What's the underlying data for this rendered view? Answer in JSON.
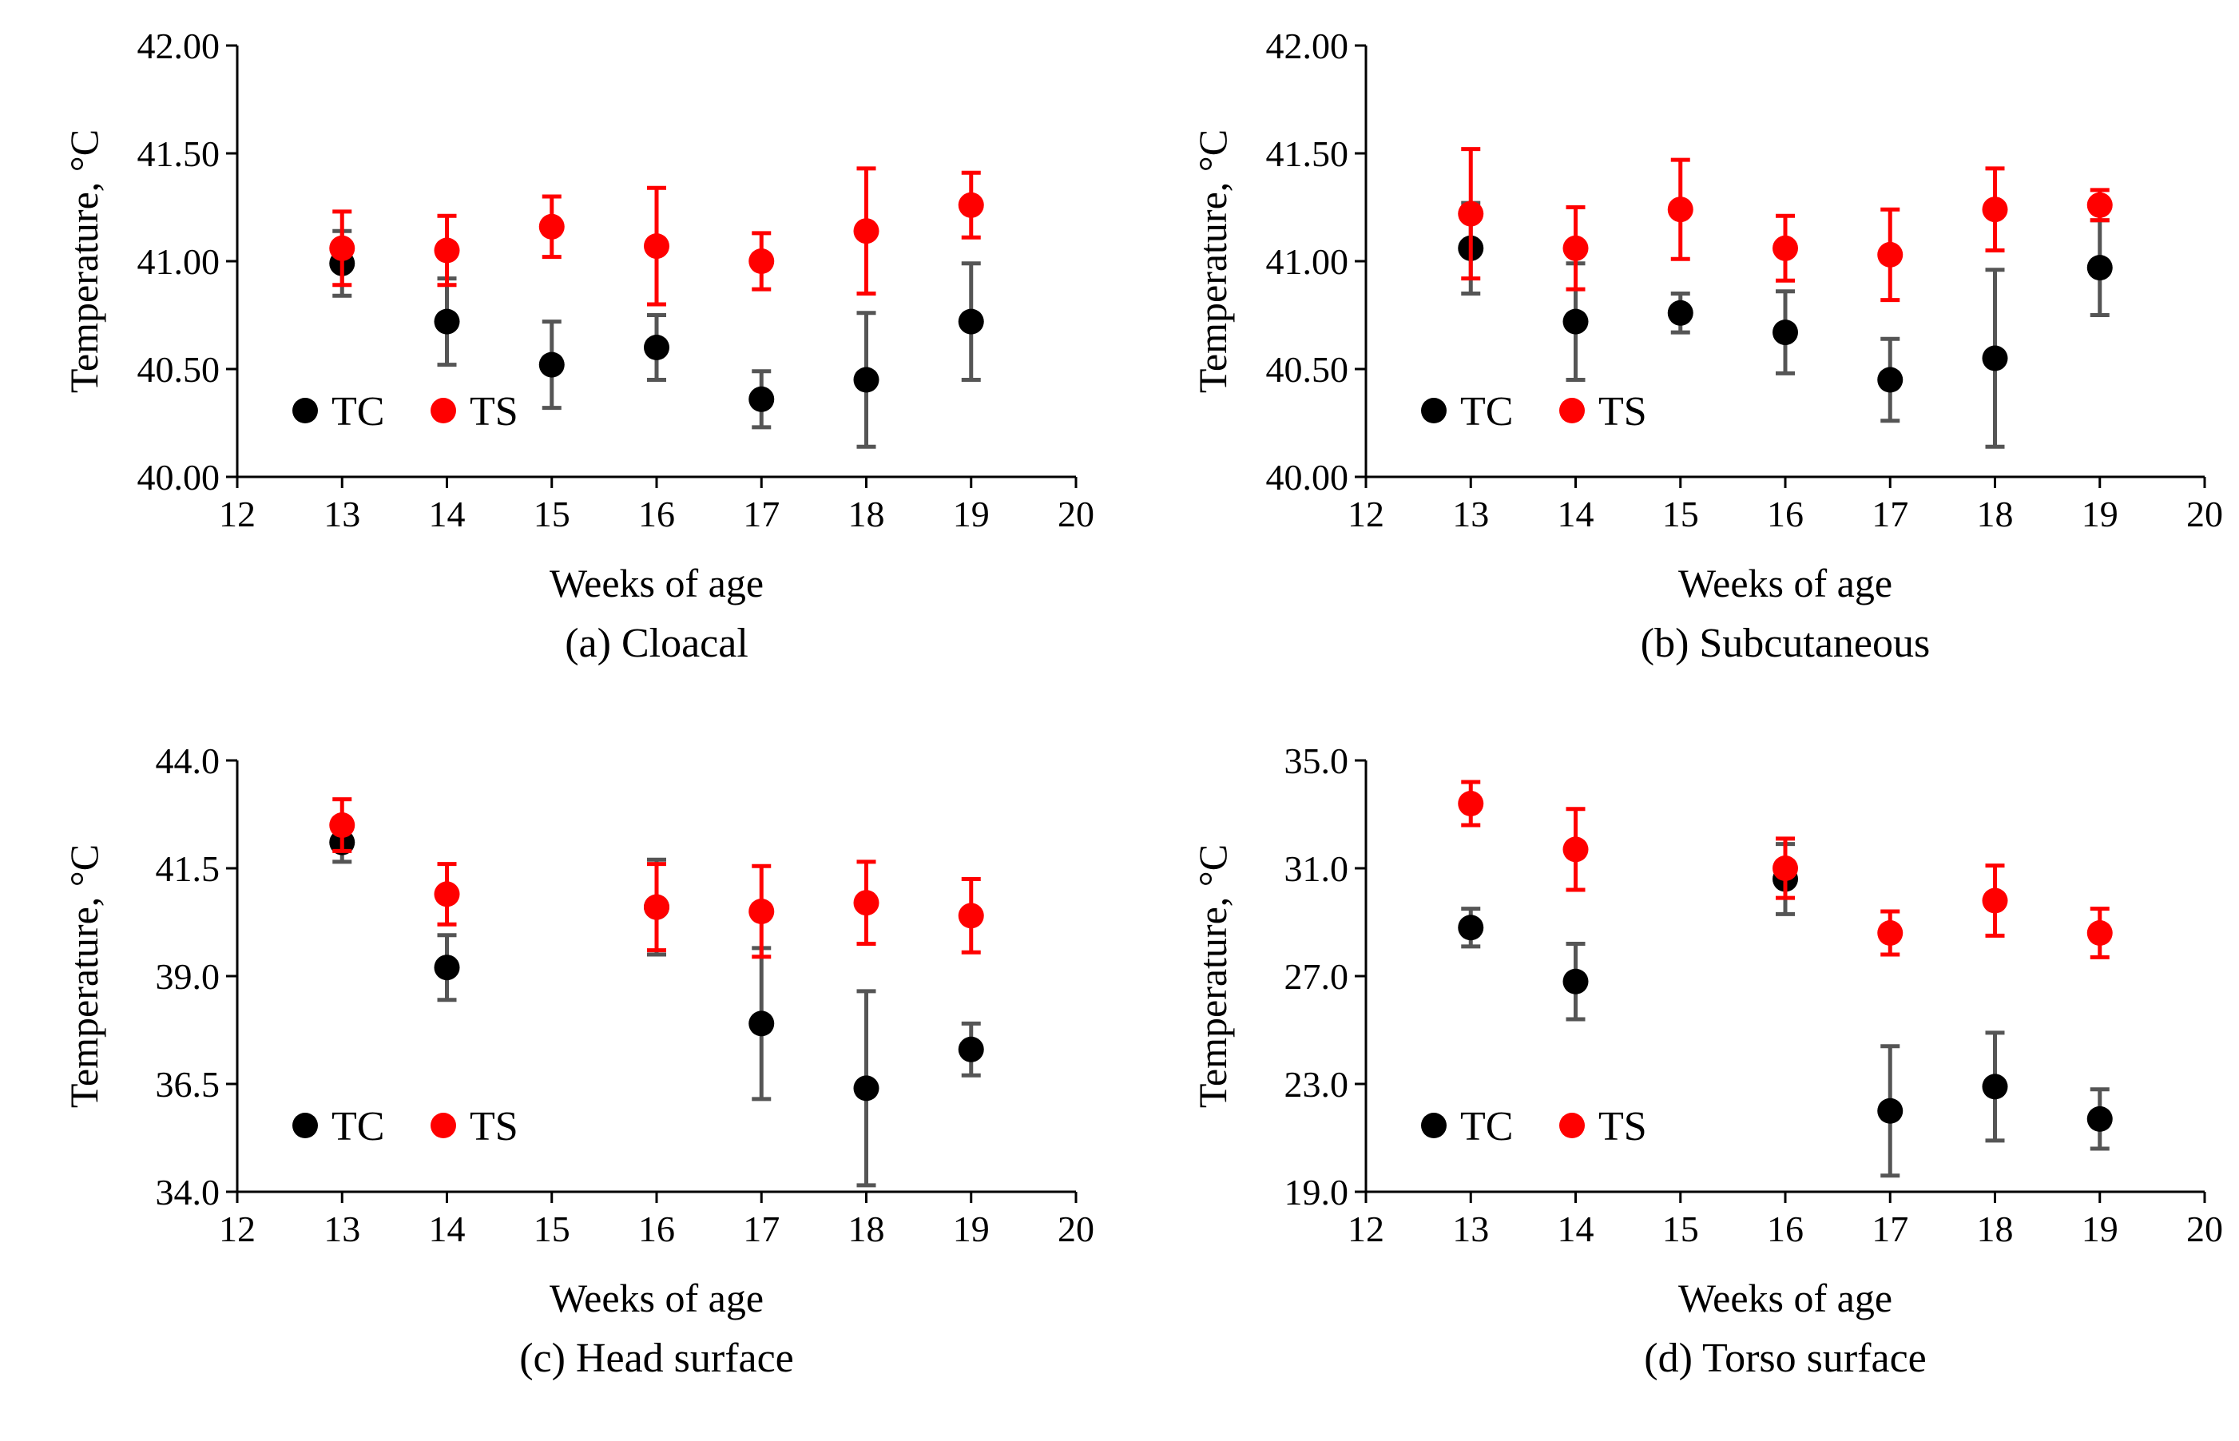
{
  "chart_data": [
    {
      "type": "scatter",
      "caption": "(a) Cloacal",
      "xlabel": "Weeks of age",
      "ylabel": "Temperature, °C",
      "xlim": [
        12,
        20
      ],
      "ylim": [
        40.0,
        42.0
      ],
      "x_ticks": [
        12,
        13,
        14,
        15,
        16,
        17,
        18,
        19,
        20
      ],
      "y_ticks": [
        40.0,
        40.5,
        41.0,
        41.5,
        42.0
      ],
      "y_tick_labels": [
        "40.00",
        "40.50",
        "41.00",
        "41.50",
        "42.00"
      ],
      "legend": [
        "TC",
        "TS"
      ],
      "series": [
        {
          "name": "TC",
          "color": "#000000",
          "x": [
            13,
            14,
            15,
            16,
            17,
            18,
            19
          ],
          "y": [
            40.99,
            40.72,
            40.52,
            40.6,
            40.36,
            40.45,
            40.72
          ],
          "err": [
            0.15,
            0.2,
            0.2,
            0.15,
            0.13,
            0.31,
            0.27
          ]
        },
        {
          "name": "TS",
          "color": "#ff0000",
          "x": [
            13,
            14,
            15,
            16,
            17,
            18,
            19
          ],
          "y": [
            41.06,
            41.05,
            41.16,
            41.07,
            41.0,
            41.14,
            41.26
          ],
          "err": [
            0.17,
            0.16,
            0.14,
            0.27,
            0.13,
            0.29,
            0.15
          ]
        }
      ]
    },
    {
      "type": "scatter",
      "caption": "(b) Subcutaneous",
      "xlabel": "Weeks of age",
      "ylabel": "Temperature, °C",
      "xlim": [
        12,
        20
      ],
      "ylim": [
        40.0,
        42.0
      ],
      "x_ticks": [
        12,
        13,
        14,
        15,
        16,
        17,
        18,
        19,
        20
      ],
      "y_ticks": [
        40.0,
        40.5,
        41.0,
        41.5,
        42.0
      ],
      "y_tick_labels": [
        "40.00",
        "40.50",
        "41.00",
        "41.50",
        "42.00"
      ],
      "legend": [
        "TC",
        "TS"
      ],
      "series": [
        {
          "name": "TC",
          "color": "#000000",
          "x": [
            13,
            14,
            15,
            16,
            17,
            18,
            19
          ],
          "y": [
            41.06,
            40.72,
            40.76,
            40.67,
            40.45,
            40.55,
            40.97
          ],
          "err": [
            0.21,
            0.27,
            0.09,
            0.19,
            0.19,
            0.41,
            0.22
          ]
        },
        {
          "name": "TS",
          "color": "#ff0000",
          "x": [
            13,
            14,
            15,
            16,
            17,
            18,
            19
          ],
          "y": [
            41.22,
            41.06,
            41.24,
            41.06,
            41.03,
            41.24,
            41.26
          ],
          "err": [
            0.3,
            0.19,
            0.23,
            0.15,
            0.21,
            0.19,
            0.07
          ]
        }
      ]
    },
    {
      "type": "scatter",
      "caption": "(c) Head surface",
      "xlabel": "Weeks of age",
      "ylabel": "Temperature, °C",
      "xlim": [
        12,
        20
      ],
      "ylim": [
        34.0,
        44.0
      ],
      "x_ticks": [
        12,
        13,
        14,
        15,
        16,
        17,
        18,
        19,
        20
      ],
      "y_ticks": [
        34.0,
        36.5,
        39.0,
        41.5,
        44.0
      ],
      "y_tick_labels": [
        "34.0",
        "36.5",
        "39.0",
        "41.5",
        "44.0"
      ],
      "legend": [
        "TC",
        "TS"
      ],
      "series": [
        {
          "name": "TC",
          "color": "#000000",
          "x": [
            13,
            14,
            16,
            17,
            18,
            19
          ],
          "y": [
            42.1,
            39.2,
            40.6,
            37.9,
            36.4,
            37.3
          ],
          "err": [
            0.45,
            0.75,
            1.1,
            1.75,
            2.25,
            0.6
          ]
        },
        {
          "name": "TS",
          "color": "#ff0000",
          "x": [
            13,
            14,
            16,
            17,
            18,
            19
          ],
          "y": [
            42.5,
            40.9,
            40.6,
            40.5,
            40.7,
            40.4
          ],
          "err": [
            0.6,
            0.7,
            1.0,
            1.05,
            0.95,
            0.85
          ]
        }
      ]
    },
    {
      "type": "scatter",
      "caption": "(d) Torso surface",
      "xlabel": "Weeks of age",
      "ylabel": "Temperature, °C",
      "xlim": [
        12,
        20
      ],
      "ylim": [
        19.0,
        35.0
      ],
      "x_ticks": [
        12,
        13,
        14,
        15,
        16,
        17,
        18,
        19,
        20
      ],
      "y_ticks": [
        19.0,
        23.0,
        27.0,
        31.0,
        35.0
      ],
      "y_tick_labels": [
        "19.0",
        "23.0",
        "27.0",
        "31.0",
        "35.0"
      ],
      "legend": [
        "TC",
        "TS"
      ],
      "series": [
        {
          "name": "TC",
          "color": "#000000",
          "x": [
            13,
            14,
            16,
            17,
            18,
            19
          ],
          "y": [
            28.8,
            26.8,
            30.6,
            22.0,
            22.9,
            21.7
          ],
          "err": [
            0.7,
            1.4,
            1.3,
            2.4,
            2.0,
            1.1
          ]
        },
        {
          "name": "TS",
          "color": "#ff0000",
          "x": [
            13,
            14,
            16,
            17,
            18,
            19
          ],
          "y": [
            33.4,
            31.7,
            31.0,
            28.6,
            29.8,
            28.6
          ],
          "err": [
            0.8,
            1.5,
            1.1,
            0.8,
            1.3,
            0.9
          ]
        }
      ]
    }
  ]
}
